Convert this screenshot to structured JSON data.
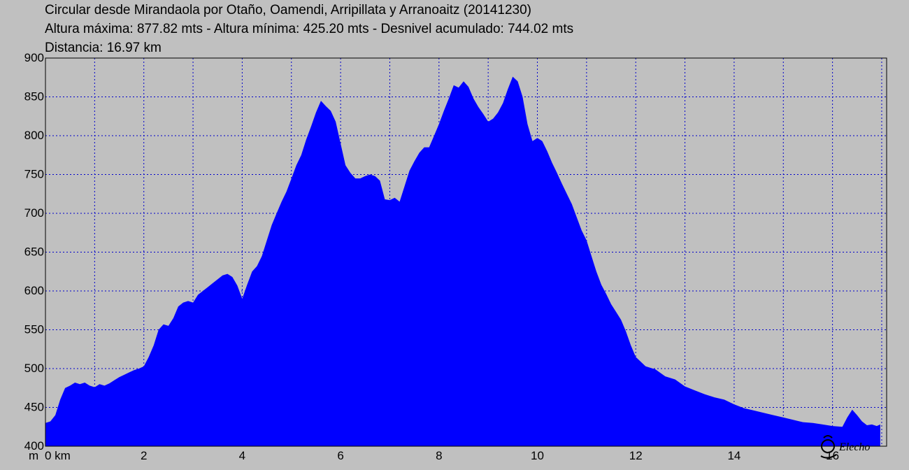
{
  "header": {
    "line1": "Circular desde Mirandaola por Otaño, Oamendi, Arripillata y Arranoaitz (20141230)",
    "line2": "Altura máxima: 877.82 mts - Altura mínima: 425.20 mts - Desnivel acumulado: 744.02 mts",
    "line3": "Distancia: 16.97 km"
  },
  "colors": {
    "fill": "#0000ff",
    "background": "#c0c0c0",
    "grid": "#0000cc"
  },
  "chart_data": {
    "type": "area",
    "xlabel": "km",
    "ylabel": "m",
    "xlim": [
      0,
      17.1
    ],
    "ylim": [
      400,
      900
    ],
    "xticks": [
      0,
      2,
      4,
      6,
      8,
      10,
      12,
      14,
      16
    ],
    "xtick_labels": [
      "0 km",
      "2",
      "4",
      "6",
      "8",
      "10",
      "12",
      "14",
      "16"
    ],
    "yticks": [
      400,
      450,
      500,
      550,
      600,
      650,
      700,
      750,
      800,
      850,
      900
    ],
    "ytick_labels": [
      "400",
      "450",
      "500",
      "550",
      "600",
      "650",
      "700",
      "750",
      "800",
      "850",
      "900"
    ],
    "y_unit_label": "m",
    "grid": true,
    "series": [
      {
        "x": [
          0,
          0.1,
          0.2,
          0.3,
          0.4,
          0.5,
          0.6,
          0.7,
          0.8,
          0.9,
          1.0,
          1.1,
          1.2,
          1.3,
          1.4,
          1.5,
          1.6,
          1.7,
          1.8,
          1.9,
          2.0,
          2.1,
          2.2,
          2.3,
          2.4,
          2.5,
          2.6,
          2.7,
          2.8,
          2.9,
          3.0,
          3.1,
          3.2,
          3.3,
          3.4,
          3.5,
          3.6,
          3.7,
          3.8,
          3.9,
          4.0,
          4.1,
          4.2,
          4.3,
          4.4,
          4.5,
          4.6,
          4.7,
          4.8,
          4.9,
          5.0,
          5.1,
          5.2,
          5.3,
          5.4,
          5.5,
          5.6,
          5.7,
          5.8,
          5.9,
          6.0,
          6.1,
          6.2,
          6.3,
          6.4,
          6.5,
          6.6,
          6.7,
          6.8,
          6.9,
          7.0,
          7.1,
          7.2,
          7.3,
          7.4,
          7.5,
          7.6,
          7.7,
          7.8,
          7.9,
          8.0,
          8.1,
          8.2,
          8.3,
          8.4,
          8.5,
          8.6,
          8.7,
          8.8,
          8.9,
          9.0,
          9.1,
          9.2,
          9.3,
          9.4,
          9.5,
          9.6,
          9.7,
          9.8,
          9.9,
          10.0,
          10.1,
          10.2,
          10.3,
          10.4,
          10.5,
          10.6,
          10.7,
          10.8,
          10.9,
          11.0,
          11.1,
          11.2,
          11.3,
          11.4,
          11.5,
          11.6,
          11.7,
          11.8,
          11.9,
          12.0,
          12.2,
          12.4,
          12.6,
          12.8,
          13.0,
          13.2,
          13.4,
          13.6,
          13.8,
          14.0,
          14.2,
          14.4,
          14.6,
          14.8,
          15.0,
          15.2,
          15.4,
          15.6,
          15.8,
          16.0,
          16.2,
          16.3,
          16.4,
          16.5,
          16.6,
          16.7,
          16.8,
          16.9,
          16.97
        ],
        "y": [
          430,
          432,
          440,
          460,
          475,
          478,
          482,
          480,
          482,
          478,
          476,
          480,
          478,
          481,
          485,
          489,
          492,
          495,
          498,
          500,
          503,
          515,
          530,
          550,
          557,
          555,
          565,
          580,
          585,
          587,
          585,
          595,
          600,
          605,
          610,
          615,
          620,
          622,
          618,
          607,
          590,
          608,
          625,
          632,
          645,
          665,
          685,
          700,
          715,
          728,
          745,
          762,
          775,
          795,
          812,
          830,
          845,
          838,
          832,
          818,
          790,
          762,
          752,
          745,
          745,
          748,
          750,
          748,
          742,
          718,
          717,
          720,
          715,
          735,
          755,
          767,
          778,
          785,
          785,
          800,
          815,
          832,
          848,
          865,
          862,
          870,
          863,
          848,
          837,
          828,
          818,
          822,
          830,
          842,
          860,
          876,
          870,
          850,
          815,
          793,
          797,
          793,
          780,
          765,
          752,
          738,
          725,
          712,
          695,
          678,
          665,
          645,
          625,
          608,
          596,
          583,
          573,
          563,
          548,
          530,
          515,
          503,
          499,
          490,
          486,
          477,
          472,
          467,
          463,
          460,
          454,
          449,
          446,
          443,
          440,
          437,
          434,
          431,
          430,
          428,
          426,
          425,
          437,
          447,
          440,
          432,
          427,
          428,
          426,
          428
        ]
      }
    ]
  },
  "logo": {
    "text": "Elecho"
  }
}
